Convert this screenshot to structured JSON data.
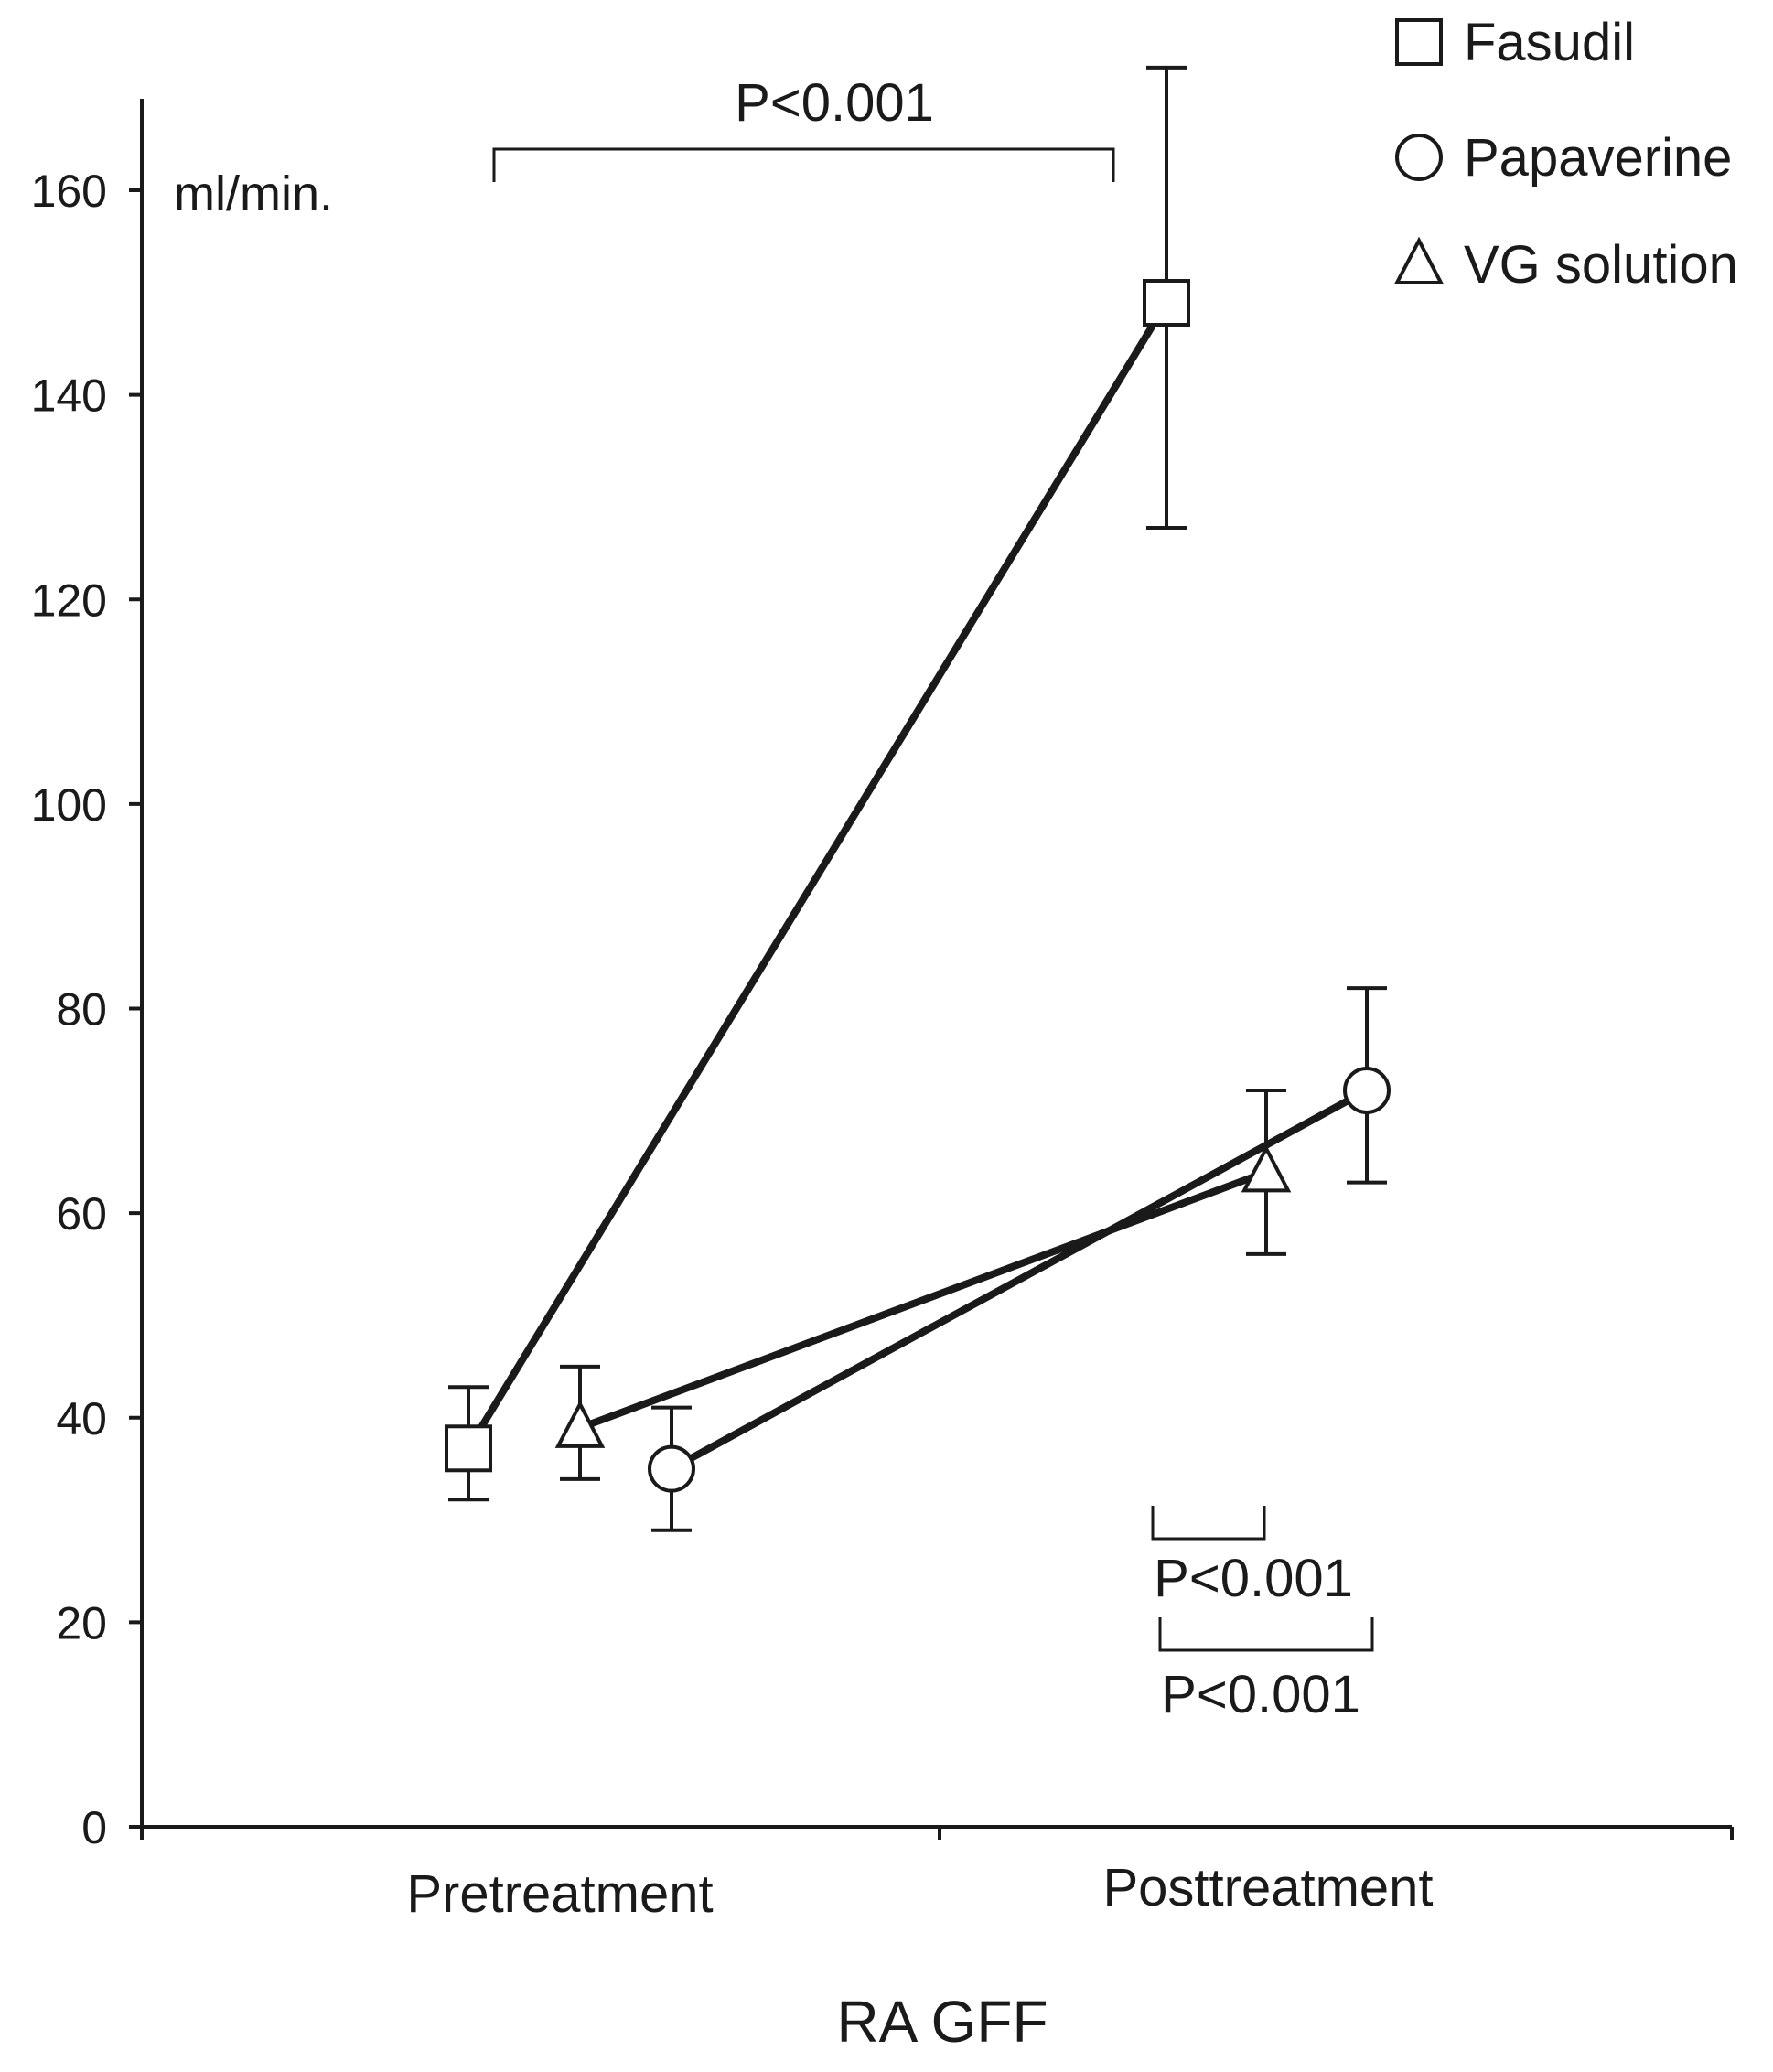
{
  "chart_data": {
    "type": "line",
    "xlabel": "RA GFF",
    "ylabel": "ml/min.",
    "categories": [
      "Pretreatment",
      "Posttreatment"
    ],
    "ylim": [
      0,
      160
    ],
    "yticks": [
      0,
      20,
      40,
      60,
      80,
      100,
      120,
      140,
      160
    ],
    "grid": false,
    "legend_position": "top-right",
    "series": [
      {
        "name": "Fasudil",
        "marker": "square",
        "values": [
          37,
          149
        ],
        "error_low": [
          32,
          127
        ],
        "error_high": [
          43,
          172
        ]
      },
      {
        "name": "Papaverine",
        "marker": "circle",
        "values": [
          35,
          72
        ],
        "error_low": [
          29,
          63
        ],
        "error_high": [
          41,
          82
        ]
      },
      {
        "name": "VG solution",
        "marker": "triangle",
        "values": [
          39,
          64
        ],
        "error_low": [
          34,
          56
        ],
        "error_high": [
          45,
          72
        ]
      }
    ],
    "annotations": [
      {
        "text": "P<0.001",
        "between": [
          "Fasudil Pretreatment",
          "Fasudil Posttreatment"
        ]
      },
      {
        "text": "P<0.001",
        "between": [
          "Fasudil Posttreatment",
          "VG solution Posttreatment"
        ]
      },
      {
        "text": "P<0.001",
        "between": [
          "Fasudil Posttreatment",
          "Papaverine Posttreatment"
        ]
      }
    ]
  },
  "colors": {
    "ink": "#1a1a1a",
    "background": "#ffffff"
  }
}
